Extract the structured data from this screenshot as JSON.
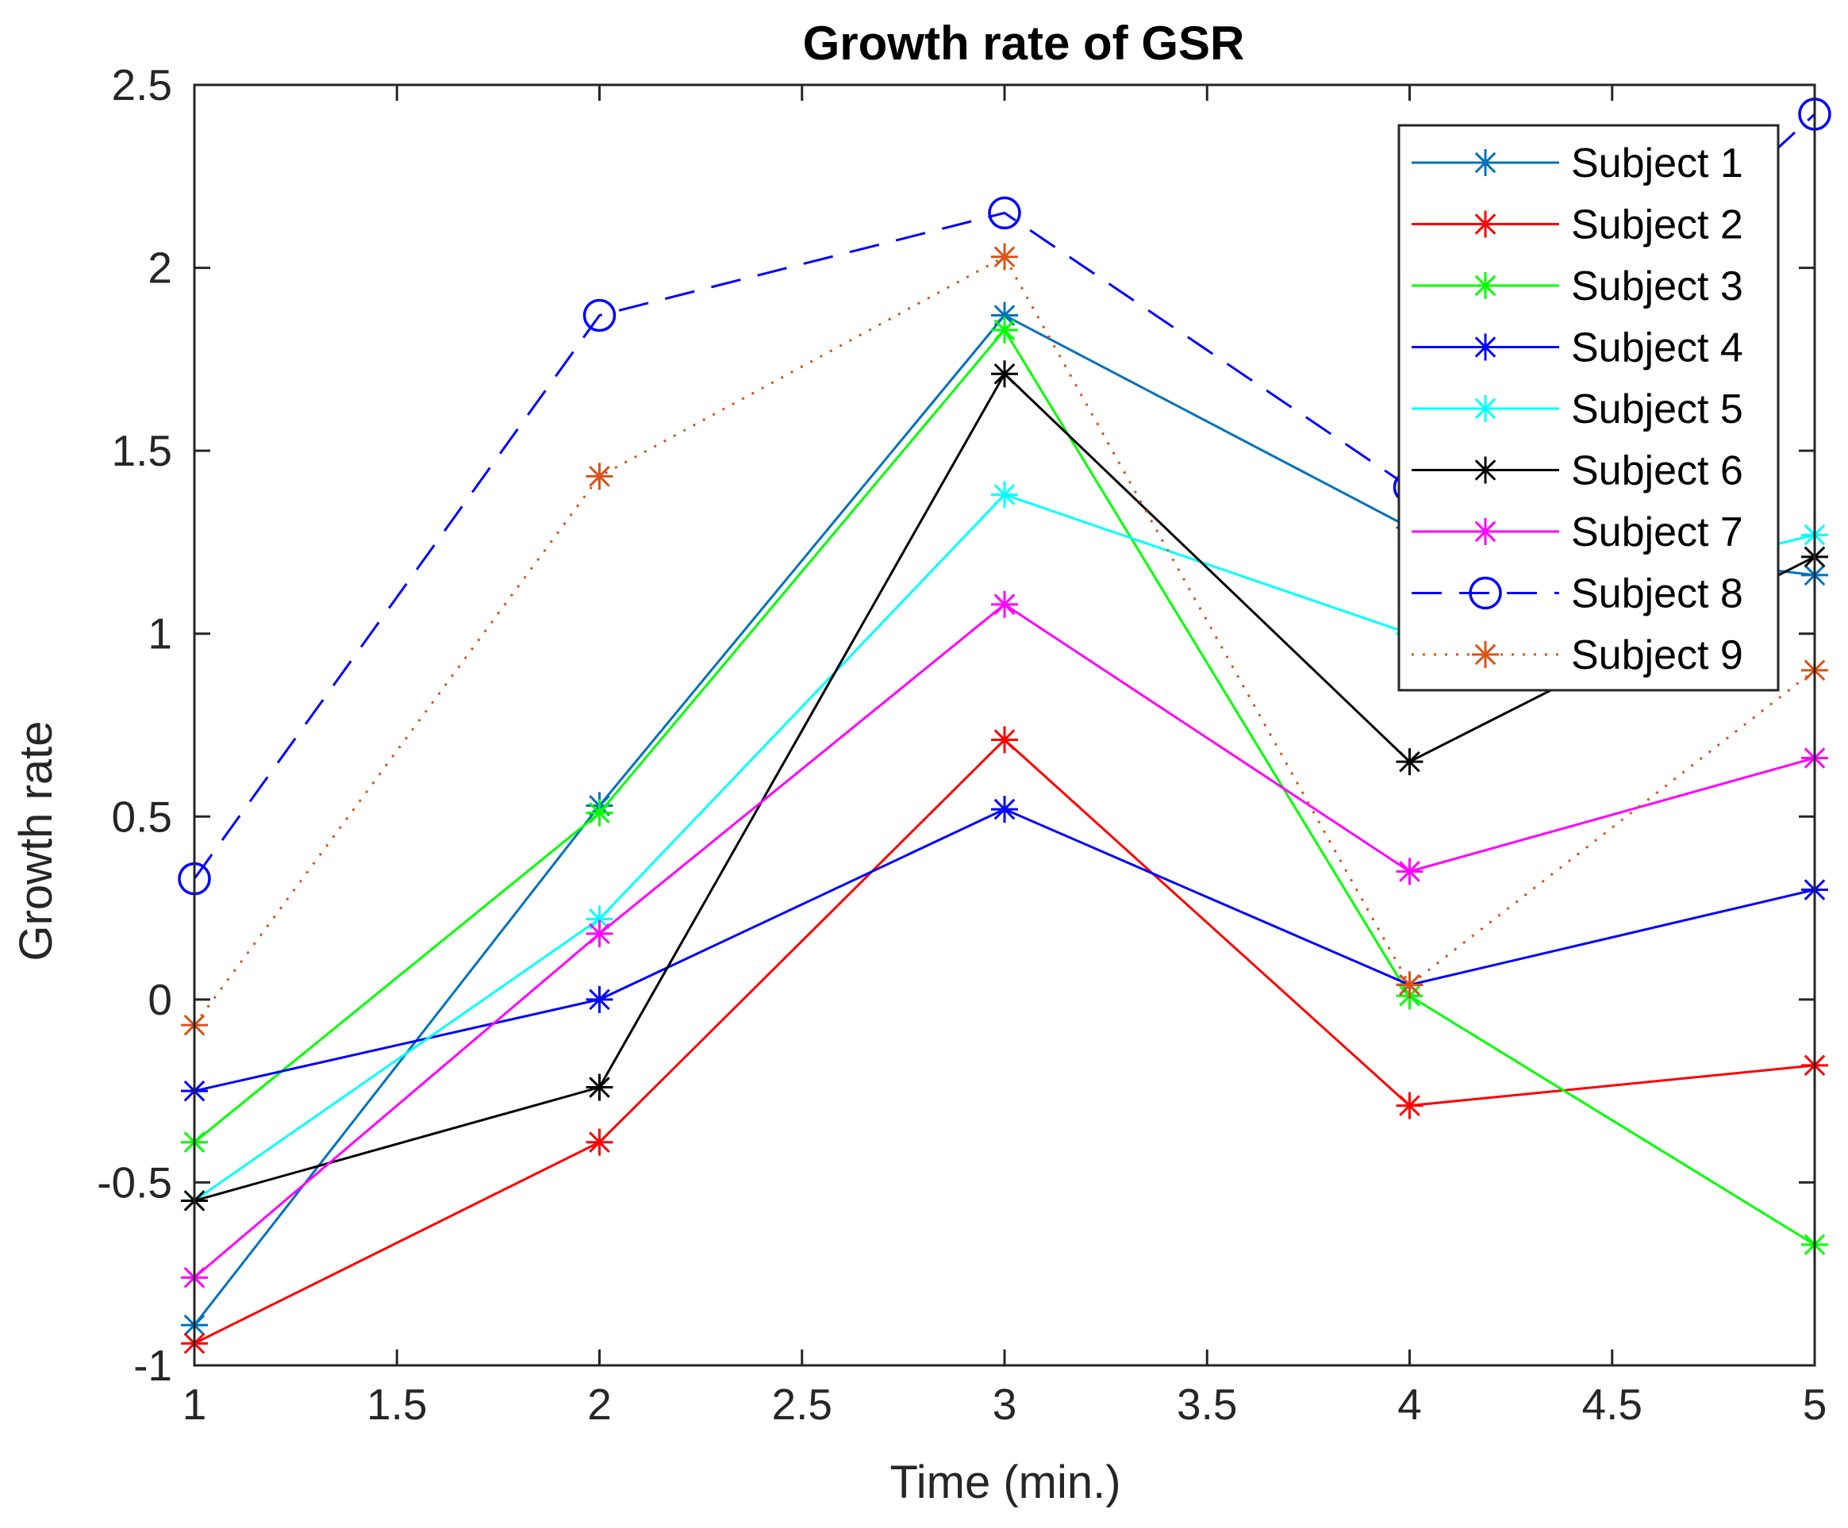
{
  "chart_data": {
    "type": "line",
    "title": "Growth rate of GSR",
    "xlabel": "Time (min.)",
    "ylabel": "Growth rate",
    "xlim": [
      1,
      5
    ],
    "ylim": [
      -1,
      2.5
    ],
    "xticks": [
      1,
      1.5,
      2,
      2.5,
      3,
      3.5,
      4,
      4.5,
      5
    ],
    "xtick_labels": [
      "1",
      "1.5",
      "2",
      "2.5",
      "3",
      "3.5",
      "4",
      "4.5",
      "5"
    ],
    "yticks": [
      -1,
      -0.5,
      0,
      0.5,
      1,
      1.5,
      2,
      2.5
    ],
    "ytick_labels": [
      "-1",
      "-0.5",
      "0",
      "0.5",
      "1",
      "1.5",
      "2",
      "2.5"
    ],
    "grid": false,
    "legend_position": "top-right",
    "x": [
      1,
      2,
      3,
      4,
      5
    ],
    "series": [
      {
        "name": "Subject 1",
        "color": "#0072BD",
        "marker": "asterisk",
        "line": "solid",
        "values": [
          -0.89,
          0.53,
          1.87,
          1.29,
          1.16
        ]
      },
      {
        "name": "Subject 2",
        "color": "#FF0000",
        "marker": "asterisk",
        "line": "solid",
        "values": [
          -0.94,
          -0.39,
          0.71,
          -0.29,
          -0.18
        ]
      },
      {
        "name": "Subject 3",
        "color": "#00FF00",
        "marker": "asterisk",
        "line": "solid",
        "values": [
          -0.39,
          0.51,
          1.83,
          0.01,
          -0.67
        ]
      },
      {
        "name": "Subject 4",
        "color": "#0000FF",
        "marker": "asterisk",
        "line": "solid",
        "values": [
          -0.25,
          0.0,
          0.52,
          0.04,
          0.3
        ]
      },
      {
        "name": "Subject 5",
        "color": "#00FFFF",
        "marker": "asterisk",
        "line": "solid",
        "values": [
          -0.55,
          0.22,
          1.38,
          1.0,
          1.27
        ]
      },
      {
        "name": "Subject 6",
        "color": "#000000",
        "marker": "asterisk",
        "line": "solid",
        "values": [
          -0.55,
          -0.24,
          1.71,
          0.65,
          1.21
        ]
      },
      {
        "name": "Subject 7",
        "color": "#FF00FF",
        "marker": "asterisk",
        "line": "solid",
        "values": [
          -0.76,
          0.18,
          1.08,
          0.35,
          0.66
        ]
      },
      {
        "name": "Subject 8",
        "color": "#0000FF",
        "marker": "circle",
        "line": "dashed",
        "values": [
          0.33,
          1.87,
          2.15,
          1.4,
          2.42
        ]
      },
      {
        "name": "Subject 9",
        "color": "#D95319",
        "marker": "asterisk",
        "line": "dotted",
        "values": [
          -0.07,
          1.43,
          2.03,
          0.04,
          0.9
        ]
      }
    ]
  }
}
